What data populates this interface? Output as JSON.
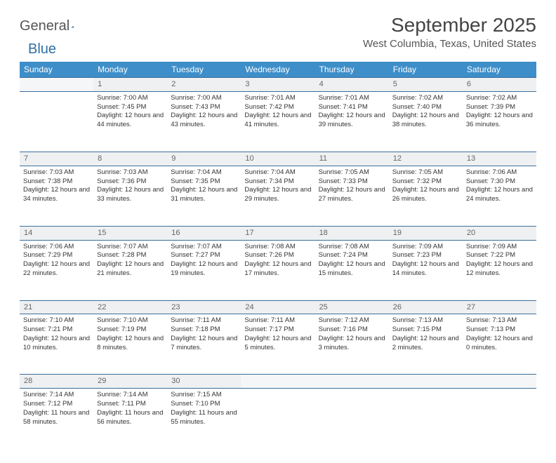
{
  "logo": {
    "text1": "General",
    "text2": "Blue"
  },
  "title": "September 2025",
  "location": "West Columbia, Texas, United States",
  "colors": {
    "header_bg": "#3d8ec9",
    "header_fg": "#ffffff",
    "daynum_bg": "#eef0f1",
    "border": "#3d6e9c",
    "empty_bg": "#f5f6f7",
    "text": "#333333",
    "logo_accent": "#2f6fa3"
  },
  "dayNames": [
    "Sunday",
    "Monday",
    "Tuesday",
    "Wednesday",
    "Thursday",
    "Friday",
    "Saturday"
  ],
  "weeks": [
    [
      null,
      {
        "n": "1",
        "sr": "7:00 AM",
        "ss": "7:45 PM",
        "dl": "12 hours and 44 minutes."
      },
      {
        "n": "2",
        "sr": "7:00 AM",
        "ss": "7:43 PM",
        "dl": "12 hours and 43 minutes."
      },
      {
        "n": "3",
        "sr": "7:01 AM",
        "ss": "7:42 PM",
        "dl": "12 hours and 41 minutes."
      },
      {
        "n": "4",
        "sr": "7:01 AM",
        "ss": "7:41 PM",
        "dl": "12 hours and 39 minutes."
      },
      {
        "n": "5",
        "sr": "7:02 AM",
        "ss": "7:40 PM",
        "dl": "12 hours and 38 minutes."
      },
      {
        "n": "6",
        "sr": "7:02 AM",
        "ss": "7:39 PM",
        "dl": "12 hours and 36 minutes."
      }
    ],
    [
      {
        "n": "7",
        "sr": "7:03 AM",
        "ss": "7:38 PM",
        "dl": "12 hours and 34 minutes."
      },
      {
        "n": "8",
        "sr": "7:03 AM",
        "ss": "7:36 PM",
        "dl": "12 hours and 33 minutes."
      },
      {
        "n": "9",
        "sr": "7:04 AM",
        "ss": "7:35 PM",
        "dl": "12 hours and 31 minutes."
      },
      {
        "n": "10",
        "sr": "7:04 AM",
        "ss": "7:34 PM",
        "dl": "12 hours and 29 minutes."
      },
      {
        "n": "11",
        "sr": "7:05 AM",
        "ss": "7:33 PM",
        "dl": "12 hours and 27 minutes."
      },
      {
        "n": "12",
        "sr": "7:05 AM",
        "ss": "7:32 PM",
        "dl": "12 hours and 26 minutes."
      },
      {
        "n": "13",
        "sr": "7:06 AM",
        "ss": "7:30 PM",
        "dl": "12 hours and 24 minutes."
      }
    ],
    [
      {
        "n": "14",
        "sr": "7:06 AM",
        "ss": "7:29 PM",
        "dl": "12 hours and 22 minutes."
      },
      {
        "n": "15",
        "sr": "7:07 AM",
        "ss": "7:28 PM",
        "dl": "12 hours and 21 minutes."
      },
      {
        "n": "16",
        "sr": "7:07 AM",
        "ss": "7:27 PM",
        "dl": "12 hours and 19 minutes."
      },
      {
        "n": "17",
        "sr": "7:08 AM",
        "ss": "7:26 PM",
        "dl": "12 hours and 17 minutes."
      },
      {
        "n": "18",
        "sr": "7:08 AM",
        "ss": "7:24 PM",
        "dl": "12 hours and 15 minutes."
      },
      {
        "n": "19",
        "sr": "7:09 AM",
        "ss": "7:23 PM",
        "dl": "12 hours and 14 minutes."
      },
      {
        "n": "20",
        "sr": "7:09 AM",
        "ss": "7:22 PM",
        "dl": "12 hours and 12 minutes."
      }
    ],
    [
      {
        "n": "21",
        "sr": "7:10 AM",
        "ss": "7:21 PM",
        "dl": "12 hours and 10 minutes."
      },
      {
        "n": "22",
        "sr": "7:10 AM",
        "ss": "7:19 PM",
        "dl": "12 hours and 8 minutes."
      },
      {
        "n": "23",
        "sr": "7:11 AM",
        "ss": "7:18 PM",
        "dl": "12 hours and 7 minutes."
      },
      {
        "n": "24",
        "sr": "7:11 AM",
        "ss": "7:17 PM",
        "dl": "12 hours and 5 minutes."
      },
      {
        "n": "25",
        "sr": "7:12 AM",
        "ss": "7:16 PM",
        "dl": "12 hours and 3 minutes."
      },
      {
        "n": "26",
        "sr": "7:13 AM",
        "ss": "7:15 PM",
        "dl": "12 hours and 2 minutes."
      },
      {
        "n": "27",
        "sr": "7:13 AM",
        "ss": "7:13 PM",
        "dl": "12 hours and 0 minutes."
      }
    ],
    [
      {
        "n": "28",
        "sr": "7:14 AM",
        "ss": "7:12 PM",
        "dl": "11 hours and 58 minutes."
      },
      {
        "n": "29",
        "sr": "7:14 AM",
        "ss": "7:11 PM",
        "dl": "11 hours and 56 minutes."
      },
      {
        "n": "30",
        "sr": "7:15 AM",
        "ss": "7:10 PM",
        "dl": "11 hours and 55 minutes."
      },
      null,
      null,
      null,
      null
    ]
  ],
  "labels": {
    "sunrise": "Sunrise:",
    "sunset": "Sunset:",
    "daylight": "Daylight:"
  }
}
